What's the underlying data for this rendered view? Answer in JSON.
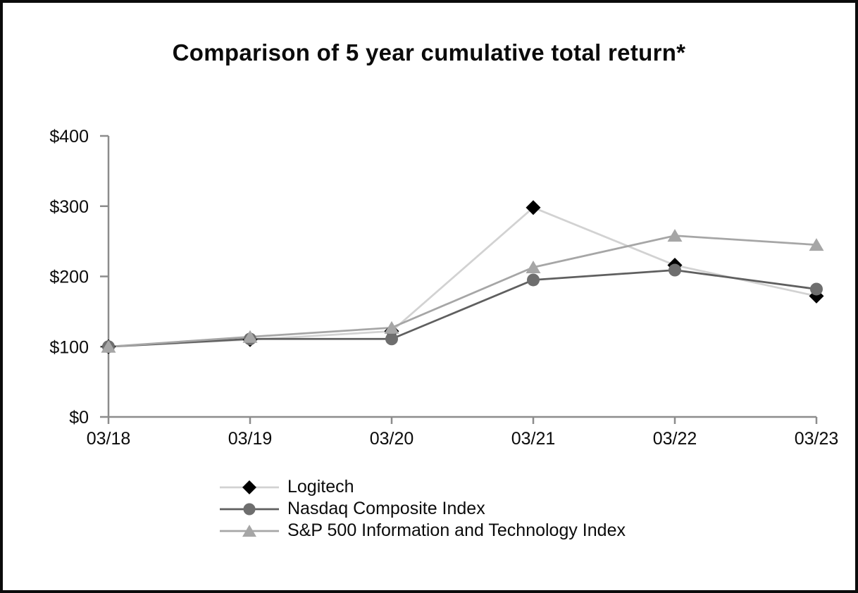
{
  "chart_data": {
    "type": "line",
    "title": "Comparison of 5 year cumulative total return*",
    "categories": [
      "03/18",
      "03/19",
      "03/20",
      "03/21",
      "03/22",
      "03/23"
    ],
    "series": [
      {
        "name": "Logitech",
        "marker": "diamond",
        "marker_color": "#000000",
        "line_color": "#d2d2d2",
        "values": [
          100,
          110,
          122,
          298,
          216,
          172
        ]
      },
      {
        "name": "Nasdaq Composite Index",
        "marker": "circle",
        "marker_color": "#6e6e6e",
        "line_color": "#5f5f5f",
        "values": [
          100,
          111,
          111,
          195,
          209,
          182
        ]
      },
      {
        "name": "S&P 500 Information and Technology Index",
        "marker": "triangle",
        "marker_color": "#a6a6a6",
        "line_color": "#a6a6a6",
        "values": [
          100,
          114,
          127,
          213,
          258,
          245
        ]
      }
    ],
    "y_ticks": [
      "$0",
      "$100",
      "$200",
      "$300",
      "$400"
    ],
    "y_tick_values": [
      0,
      100,
      200,
      300,
      400
    ],
    "ylim": [
      0,
      400
    ],
    "xlabel": "",
    "ylabel": "",
    "grid": false,
    "legend_position": "bottom-left",
    "axis_color": "#8c8c8c",
    "text_color": "#0b0b0b"
  }
}
